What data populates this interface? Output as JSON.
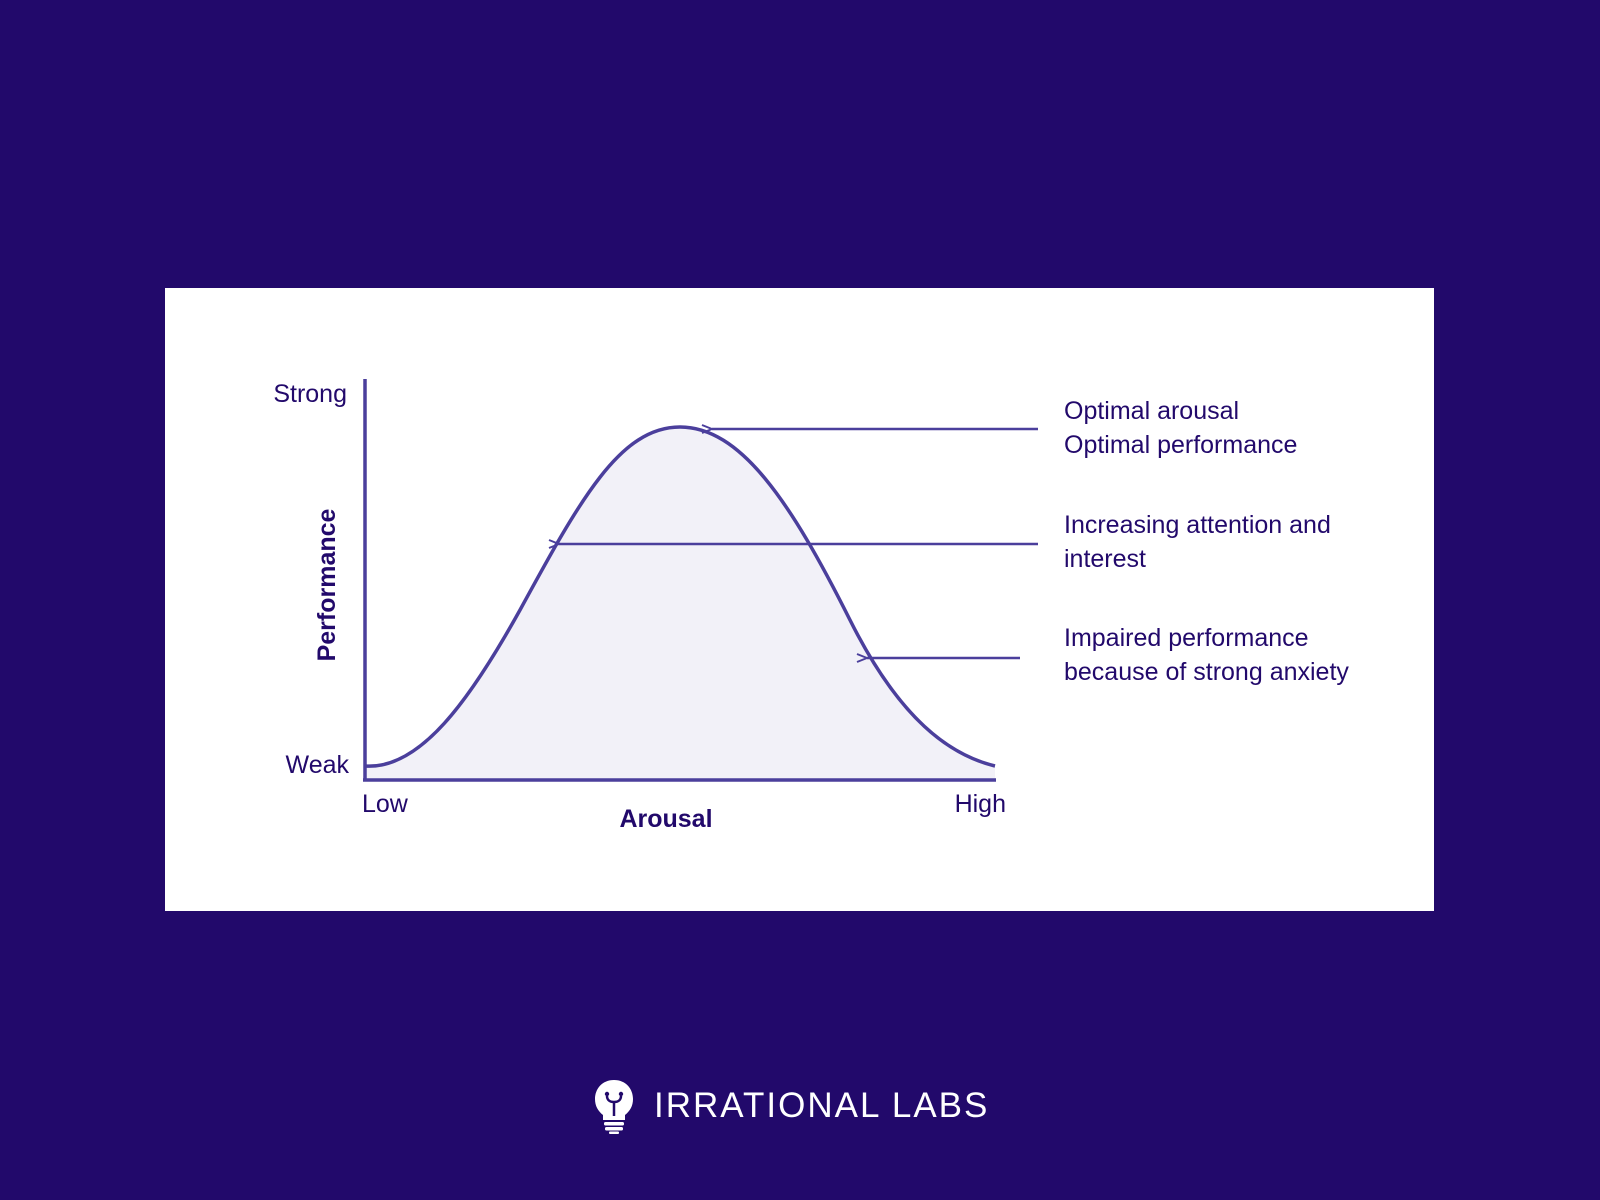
{
  "diagram": {
    "y_axis": {
      "title": "Performance",
      "top_label": "Strong",
      "bottom_label": "Weak"
    },
    "x_axis": {
      "title": "Arousal",
      "left_label": "Low",
      "right_label": "High"
    },
    "annotations": [
      {
        "line1": "Optimal arousal",
        "line2": "Optimal performance"
      },
      {
        "line1": "Increasing attention and",
        "line2": "interest"
      },
      {
        "line1": "Impaired performance",
        "line2": "because of strong anxiety"
      }
    ],
    "colors": {
      "curve": "#4b3f9c",
      "fill": "#f2f1f8",
      "text": "#22096b",
      "background": "#22096b"
    }
  },
  "brand": {
    "name": "IRRATIONAL LABS",
    "icon": "lightbulb-head-icon"
  }
}
